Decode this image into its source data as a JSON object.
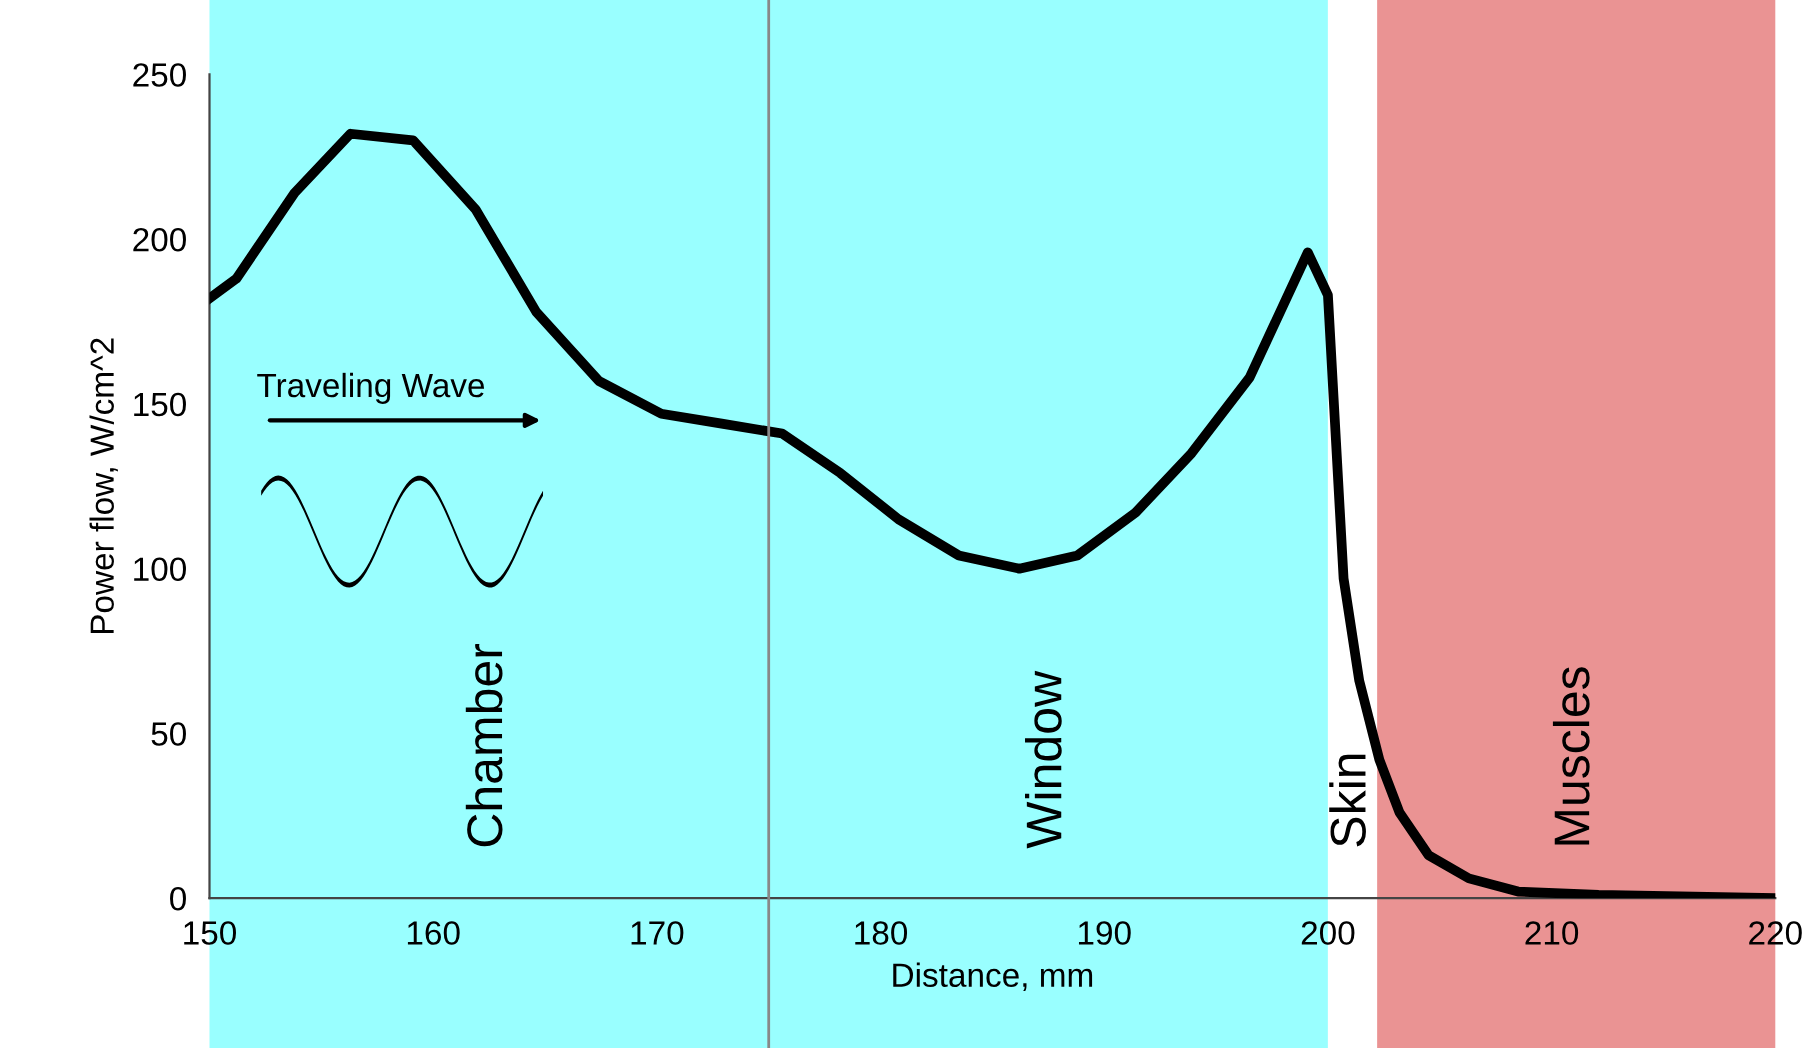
{
  "chart_data": {
    "type": "line",
    "xlabel": "Distance, mm",
    "ylabel": "Power flow, W/cm^2",
    "x": [
      150,
      151.2,
      153.8,
      156.3,
      159.1,
      161.9,
      164.6,
      167.4,
      170.2,
      172.9,
      175.6,
      178.2,
      180.8,
      183.5,
      186.2,
      188.8,
      191.4,
      193.9,
      196.5,
      199.1,
      200,
      200.7,
      201.4,
      202.3,
      203.2,
      204.5,
      206.3,
      208.5,
      212.1,
      220
    ],
    "series": [
      {
        "color": "#000000",
        "values": [
          182,
          188,
          214,
          232,
          230,
          209,
          178,
          157,
          147,
          144,
          141,
          129,
          115,
          104,
          100,
          104,
          117,
          135,
          158,
          196,
          183,
          97,
          66,
          42,
          26,
          13,
          6,
          2,
          1,
          0
        ]
      }
    ],
    "xlim": [
      150,
      220
    ],
    "xticks": [
      150,
      160,
      170,
      180,
      190,
      200,
      210,
      220
    ],
    "ylim": [
      0,
      250
    ],
    "yticks": [
      0,
      50,
      100,
      150,
      200,
      250
    ],
    "grid": false,
    "legend": false,
    "marker": "none",
    "line_style": "solid",
    "ref_lines": [
      {
        "axis": "x",
        "value": 175,
        "color": "#888888"
      }
    ],
    "bands": [
      {
        "axis": "x",
        "from": 150,
        "to": 175,
        "label": "Chamber",
        "color": "#99ffff"
      },
      {
        "axis": "x",
        "from": 175,
        "to": 200,
        "label": "Window",
        "color": "#99ffff"
      },
      {
        "axis": "x",
        "from": 200,
        "to": 202.2,
        "label": "Skin",
        "color": "#ffffff"
      },
      {
        "axis": "x",
        "from": 202.2,
        "to": 220,
        "label": "Muscles",
        "color": "#ea9393"
      }
    ],
    "annotations": [
      "Traveling Wave"
    ]
  }
}
